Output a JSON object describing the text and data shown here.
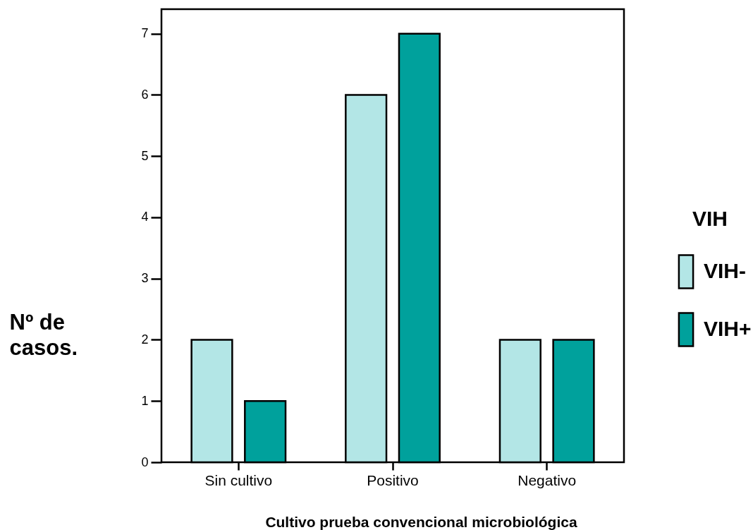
{
  "chart_data": {
    "type": "bar",
    "xlabel": "Cultivo prueba convencional microbiológica",
    "ylabel": "Nº de casos.",
    "legend_title": "VIH",
    "categories": [
      "Sin cultivo",
      "Positivo",
      "Negativo"
    ],
    "series": [
      {
        "name": "VIH-",
        "color": "#b3e6e6",
        "values": [
          2,
          6,
          2
        ]
      },
      {
        "name": "VIH+",
        "color": "#00a19c",
        "values": [
          1,
          7,
          2
        ]
      }
    ],
    "ylim": [
      0,
      7.4
    ],
    "yticks": [
      0,
      1,
      2,
      3,
      4,
      5,
      6,
      7
    ],
    "grid": false,
    "legend": "right"
  }
}
